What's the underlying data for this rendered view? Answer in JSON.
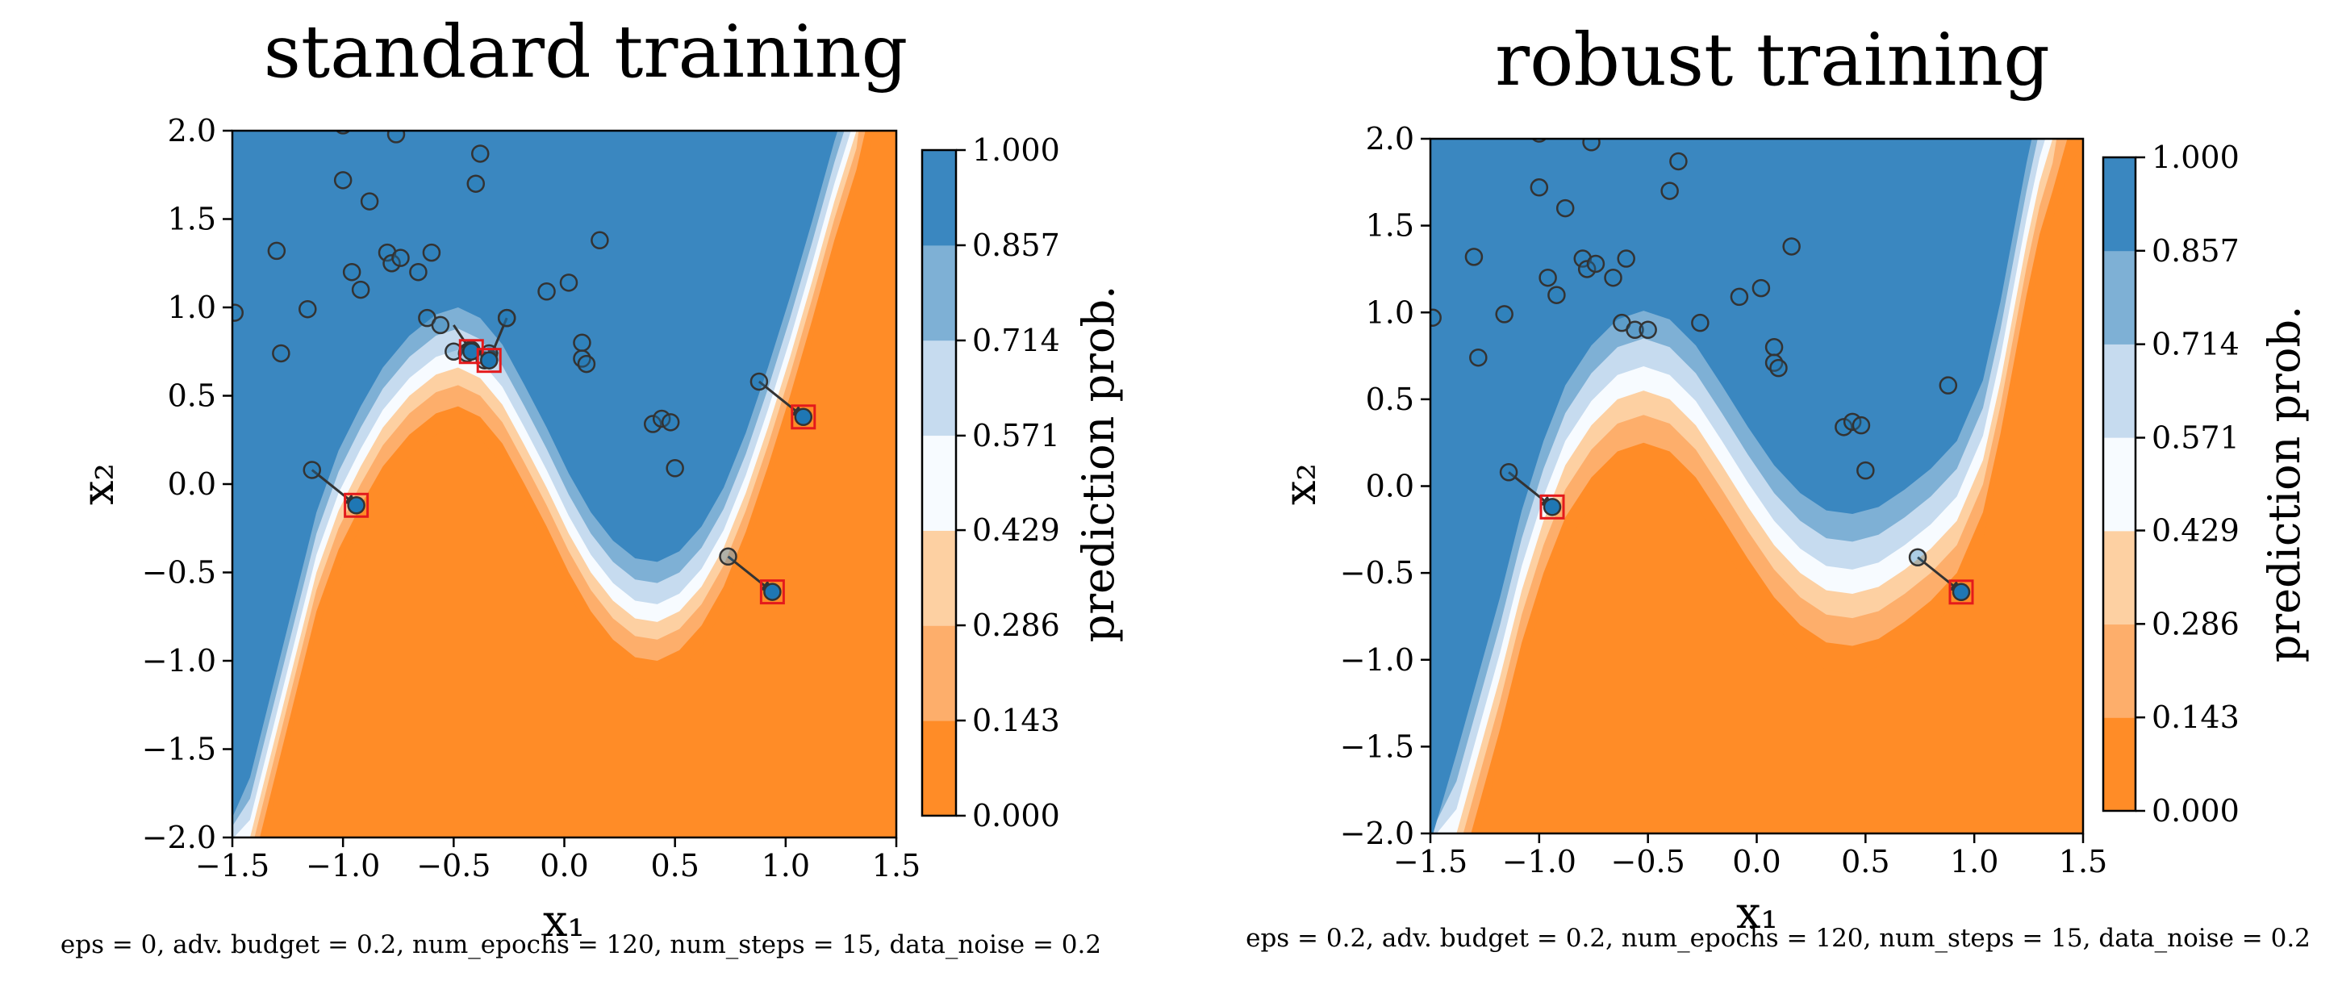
{
  "chart_data": [
    {
      "type": "contour",
      "title": "standard training",
      "xlabel": "x₁",
      "ylabel": "x₂",
      "xlim": [
        -1.5,
        1.5
      ],
      "ylim": [
        -2.0,
        2.0
      ],
      "xticks": [
        "−1.5",
        "−1.0",
        "−0.5",
        "0.0",
        "0.5",
        "1.0",
        "1.5"
      ],
      "xtick_values": [
        -1.5,
        -1.0,
        -0.5,
        0.0,
        0.5,
        1.0,
        1.5
      ],
      "yticks": [
        "2.0",
        "1.5",
        "1.0",
        "0.5",
        "0.0",
        "−0.5",
        "−1.0",
        "−1.5",
        "−2.0"
      ],
      "ytick_values": [
        2.0,
        1.5,
        1.0,
        0.5,
        0.0,
        -0.5,
        -1.0,
        -1.5,
        -2.0
      ],
      "colorbar": {
        "label": "prediction prob.",
        "ticks": [
          "1.000",
          "0.857",
          "0.714",
          "0.571",
          "0.429",
          "0.286",
          "0.143",
          "0.000"
        ],
        "tick_values": [
          1.0,
          0.857,
          0.714,
          0.571,
          0.429,
          0.286,
          0.143,
          0.0
        ]
      },
      "boundary_x": [
        -1.42,
        -1.32,
        -1.22,
        -1.12,
        -1.02,
        -0.92,
        -0.82,
        -0.7,
        -0.58,
        -0.48,
        -0.38,
        -0.28,
        -0.18,
        -0.08,
        0.02,
        0.12,
        0.22,
        0.32,
        0.42,
        0.52,
        0.62,
        0.72,
        0.82,
        0.92,
        1.02,
        1.12,
        1.22,
        1.32
      ],
      "boundary_y": [
        -2.0,
        -1.5,
        -1.0,
        -0.5,
        -0.15,
        0.1,
        0.32,
        0.5,
        0.62,
        0.66,
        0.6,
        0.45,
        0.22,
        -0.02,
        -0.28,
        -0.5,
        -0.66,
        -0.76,
        -0.78,
        -0.72,
        -0.58,
        -0.36,
        -0.05,
        0.32,
        0.72,
        1.15,
        1.6,
        2.0
      ],
      "band_offsets": [
        -0.34,
        -0.22,
        -0.1,
        0.0,
        0.1,
        0.22,
        0.34
      ],
      "points_x": [
        -1.49,
        -1.3,
        -1.28,
        -1.16,
        -1.0,
        -1.0,
        -0.96,
        -0.92,
        -0.88,
        -0.8,
        -0.78,
        -0.76,
        -0.74,
        -0.66,
        -0.62,
        -0.6,
        -0.56,
        -0.5,
        -0.44,
        -0.42,
        -0.4,
        -0.38,
        -0.36,
        -0.34,
        -0.26,
        -0.26,
        -0.08,
        0.02,
        0.08,
        0.08,
        0.1,
        0.16,
        0.4,
        0.44,
        0.48,
        0.5,
        0.88,
        -1.14,
        0.74
      ],
      "points_y": [
        0.97,
        1.32,
        0.74,
        0.99,
        2.03,
        1.72,
        1.2,
        1.1,
        1.6,
        1.31,
        1.25,
        1.98,
        1.28,
        1.2,
        0.94,
        1.31,
        0.9,
        0.75,
        0.74,
        0.76,
        1.7,
        1.87,
        0.7,
        0.74,
        0.94,
        0.94,
        1.09,
        1.14,
        0.8,
        0.71,
        0.68,
        1.38,
        0.34,
        0.37,
        0.35,
        0.09,
        0.58,
        0.08,
        -0.41
      ],
      "adversarial_from_x": [
        -1.14,
        0.74,
        0.88,
        -0.5,
        -0.26
      ],
      "adversarial_from_y": [
        0.08,
        -0.41,
        0.58,
        0.9,
        0.94
      ],
      "adversarial_to_x": [
        -0.94,
        0.94,
        1.08,
        -0.42,
        -0.34
      ],
      "adversarial_to_y": [
        -0.12,
        -0.61,
        0.38,
        0.75,
        0.7
      ]
    },
    {
      "type": "contour",
      "title": "robust training",
      "xlabel": "x₁",
      "ylabel": "x₂",
      "xlim": [
        -1.5,
        1.5
      ],
      "ylim": [
        -2.0,
        2.0
      ],
      "xticks": [
        "−1.5",
        "−1.0",
        "−0.5",
        "0.0",
        "0.5",
        "1.0",
        "1.5"
      ],
      "xtick_values": [
        -1.5,
        -1.0,
        -0.5,
        0.0,
        0.5,
        1.0,
        1.5
      ],
      "yticks": [
        "2.0",
        "1.5",
        "1.0",
        "0.5",
        "0.0",
        "−0.5",
        "−1.0",
        "−1.5",
        "−2.0"
      ],
      "ytick_values": [
        2.0,
        1.5,
        1.0,
        0.5,
        0.0,
        -0.5,
        -1.0,
        -1.5,
        -2.0
      ],
      "colorbar": {
        "label": "prediction prob.",
        "ticks": [
          "1.000",
          "0.857",
          "0.714",
          "0.571",
          "0.429",
          "0.286",
          "0.143",
          "0.000"
        ],
        "tick_values": [
          1.0,
          0.857,
          0.714,
          0.571,
          0.429,
          0.286,
          0.143,
          0.0
        ]
      },
      "boundary_x": [
        -1.38,
        -1.28,
        -1.18,
        -1.08,
        -0.98,
        -0.88,
        -0.76,
        -0.64,
        -0.52,
        -0.4,
        -0.28,
        -0.16,
        -0.04,
        0.08,
        0.2,
        0.32,
        0.44,
        0.56,
        0.68,
        0.8,
        0.92,
        1.04,
        1.12,
        1.18,
        1.24,
        1.3,
        1.36
      ],
      "boundary_y": [
        -2.0,
        -1.55,
        -1.1,
        -0.6,
        -0.2,
        0.12,
        0.35,
        0.5,
        0.55,
        0.5,
        0.35,
        0.12,
        -0.12,
        -0.34,
        -0.5,
        -0.6,
        -0.62,
        -0.58,
        -0.48,
        -0.36,
        -0.2,
        0.15,
        0.6,
        1.0,
        1.4,
        1.75,
        2.0
      ],
      "band_offsets": [
        -0.46,
        -0.3,
        -0.14,
        0.0,
        0.14,
        0.3,
        0.46
      ],
      "points_x": [
        -1.49,
        -1.3,
        -1.28,
        -1.16,
        -1.0,
        -1.0,
        -0.96,
        -0.92,
        -0.88,
        -0.8,
        -0.78,
        -0.76,
        -0.74,
        -0.66,
        -0.62,
        -0.6,
        -0.56,
        -0.5,
        -0.4,
        -0.36,
        -0.26,
        -0.08,
        0.02,
        0.08,
        0.08,
        0.1,
        0.16,
        0.4,
        0.44,
        0.48,
        0.5,
        0.88,
        -1.14,
        0.74
      ],
      "points_y": [
        0.97,
        1.32,
        0.74,
        0.99,
        2.03,
        1.72,
        1.2,
        1.1,
        1.6,
        1.31,
        1.25,
        1.98,
        1.28,
        1.2,
        0.94,
        1.31,
        0.9,
        0.9,
        1.7,
        1.87,
        0.94,
        1.09,
        1.14,
        0.8,
        0.71,
        0.68,
        1.38,
        0.34,
        0.37,
        0.35,
        0.09,
        0.58,
        0.08,
        -0.41
      ],
      "adversarial_from_x": [
        -1.14,
        0.74
      ],
      "adversarial_from_y": [
        0.08,
        -0.41
      ],
      "adversarial_to_x": [
        -0.94,
        0.94
      ],
      "adversarial_to_y": [
        -0.12,
        -0.61
      ]
    }
  ],
  "captions": [
    "eps = 0, adv. budget = 0.2, num_epochs = 120, num_steps = 15, data_noise = 0.2",
    "eps = 0.2, adv. budget = 0.2, num_epochs = 120, num_steps = 15, data_noise = 0.2"
  ],
  "colors": {
    "levels": [
      "#ff8c27",
      "#fdae6b",
      "#fdd0a2",
      "#f7fbff",
      "#c6dbef",
      "#7eb0d5",
      "#3a87c0"
    ],
    "marker_fill": "#1f77b4",
    "marker_edge": "#333333",
    "adversarial_box": "#e41a1c",
    "arrow": "#333333"
  }
}
